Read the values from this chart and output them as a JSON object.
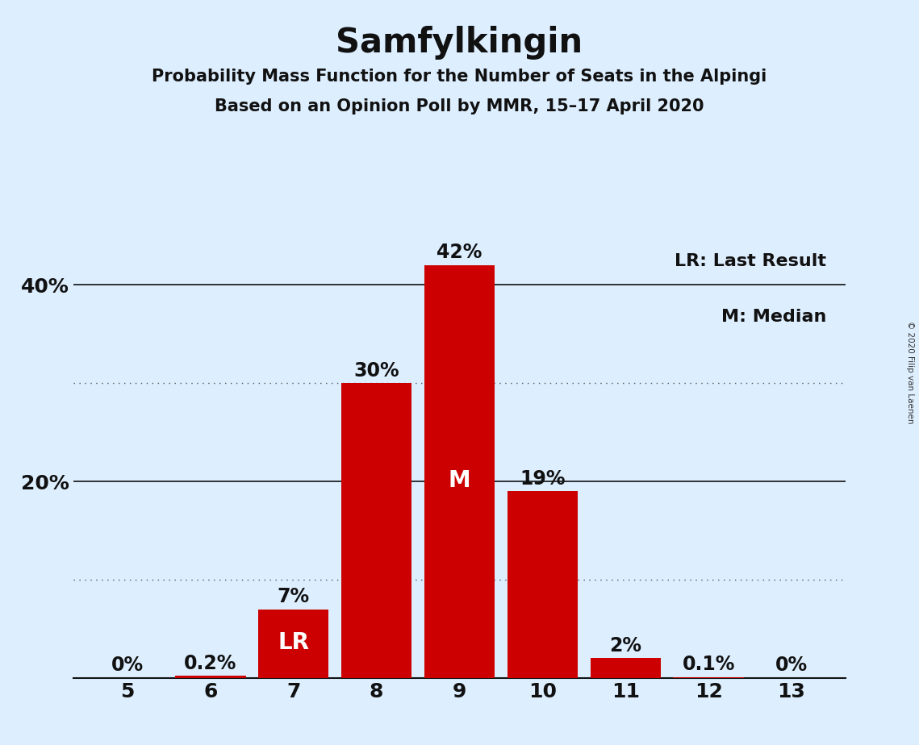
{
  "title": "Samfylkingin",
  "subtitle1": "Probability Mass Function for the Number of Seats in the Alpingi",
  "subtitle2": "Based on an Opinion Poll by MMR, 15–17 April 2020",
  "copyright": "© 2020 Filip van Laenen",
  "seats": [
    5,
    6,
    7,
    8,
    9,
    10,
    11,
    12,
    13
  ],
  "probabilities": [
    0.0,
    0.2,
    7.0,
    30.0,
    42.0,
    19.0,
    2.0,
    0.1,
    0.0
  ],
  "bar_labels": [
    "0%",
    "0.2%",
    "7%",
    "30%",
    "42%",
    "19%",
    "2%",
    "0.1%",
    "0%"
  ],
  "bar_color": "#cc0000",
  "background_color": "#ddeeff",
  "last_result_seat": 7,
  "median_seat": 9,
  "ylim": [
    0,
    47
  ],
  "yticks": [
    20,
    40
  ],
  "yticklabels": [
    "20%",
    "40%"
  ],
  "dotted_lines": [
    10,
    30
  ],
  "solid_lines": [
    20,
    40
  ],
  "legend_lr": "LR: Last Result",
  "legend_m": "M: Median",
  "title_fontsize": 30,
  "subtitle_fontsize": 15,
  "bar_label_fontsize": 17,
  "axis_tick_fontsize": 18,
  "legend_fontsize": 16
}
